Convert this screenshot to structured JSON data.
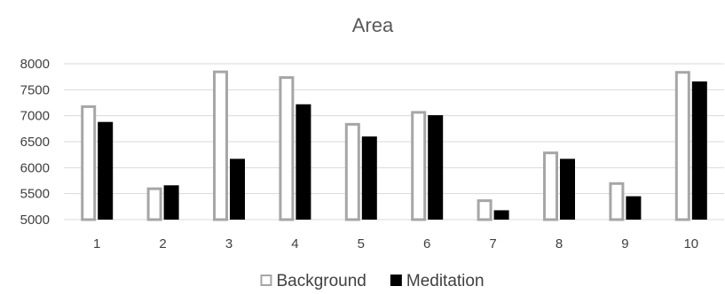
{
  "chart_data": {
    "type": "bar",
    "title": "Area",
    "xlabel": "",
    "ylabel": "",
    "categories": [
      "1",
      "2",
      "3",
      "4",
      "5",
      "6",
      "7",
      "8",
      "9",
      "10"
    ],
    "series": [
      {
        "name": "Background",
        "values": [
          7200,
          5620,
          7870,
          7760,
          6860,
          7090,
          5390,
          6310,
          5720,
          7860
        ],
        "fill": "#ffffff",
        "stroke": "#a6a6a6"
      },
      {
        "name": "Meditation",
        "values": [
          6880,
          5660,
          6170,
          7220,
          6600,
          7010,
          5180,
          6170,
          5450,
          7660
        ],
        "fill": "#000000",
        "stroke": "#000000"
      }
    ],
    "ylim": [
      5000,
      8000
    ],
    "yticks": [
      5000,
      5500,
      6000,
      6500,
      7000,
      7500,
      8000
    ],
    "grid": true,
    "legend_position": "bottom"
  }
}
